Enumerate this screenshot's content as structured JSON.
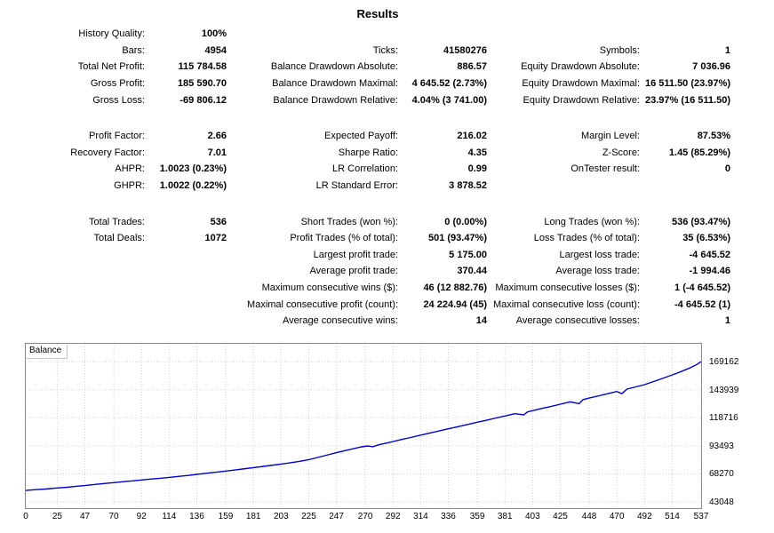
{
  "title": "Results",
  "colors": {
    "line": "#0000c8",
    "grid": "#d2d2d2",
    "plot_border": "#8a8a8a",
    "text": "#000000"
  },
  "stats_rows": [
    {
      "cells": [
        {
          "l": "History Quality:",
          "v": "100%"
        },
        {
          "l": "",
          "v": ""
        },
        {
          "l": "",
          "v": ""
        }
      ]
    },
    {
      "cells": [
        {
          "l": "Bars:",
          "v": "4954"
        },
        {
          "l": "Ticks:",
          "v": "41580276"
        },
        {
          "l": "Symbols:",
          "v": "1"
        }
      ]
    },
    {
      "cells": [
        {
          "l": "Total Net Profit:",
          "v": "115 784.58"
        },
        {
          "l": "Balance Drawdown Absolute:",
          "v": "886.57"
        },
        {
          "l": "Equity Drawdown Absolute:",
          "v": "7 036.96"
        }
      ]
    },
    {
      "cells": [
        {
          "l": "Gross Profit:",
          "v": "185 590.70"
        },
        {
          "l": "Balance Drawdown Maximal:",
          "v": "4 645.52 (2.73%)"
        },
        {
          "l": "Equity Drawdown Maximal:",
          "v": "16 511.50 (23.97%)"
        }
      ]
    },
    {
      "cells": [
        {
          "l": "Gross Loss:",
          "v": "-69 806.12"
        },
        {
          "l": "Balance Drawdown Relative:",
          "v": "4.04% (3 741.00)"
        },
        {
          "l": "Equity Drawdown Relative:",
          "v": "23.97% (16 511.50)"
        }
      ]
    },
    {
      "spacer": true
    },
    {
      "cells": [
        {
          "l": "Profit Factor:",
          "v": "2.66"
        },
        {
          "l": "Expected Payoff:",
          "v": "216.02"
        },
        {
          "l": "Margin Level:",
          "v": "87.53%"
        }
      ]
    },
    {
      "cells": [
        {
          "l": "Recovery Factor:",
          "v": "7.01"
        },
        {
          "l": "Sharpe Ratio:",
          "v": "4.35"
        },
        {
          "l": "Z-Score:",
          "v": "1.45 (85.29%)"
        }
      ]
    },
    {
      "cells": [
        {
          "l": "AHPR:",
          "v": "1.0023 (0.23%)"
        },
        {
          "l": "LR Correlation:",
          "v": "0.99"
        },
        {
          "l": "OnTester result:",
          "v": "0"
        }
      ]
    },
    {
      "cells": [
        {
          "l": "GHPR:",
          "v": "1.0022 (0.22%)"
        },
        {
          "l": "LR Standard Error:",
          "v": "3 878.52"
        },
        {
          "l": "",
          "v": ""
        }
      ]
    },
    {
      "spacer": true
    },
    {
      "cells": [
        {
          "l": "Total Trades:",
          "v": "536"
        },
        {
          "l": "Short Trades (won %):",
          "v": "0 (0.00%)"
        },
        {
          "l": "Long Trades (won %):",
          "v": "536 (93.47%)"
        }
      ]
    },
    {
      "cells": [
        {
          "l": "Total Deals:",
          "v": "1072"
        },
        {
          "l": "Profit Trades (% of total):",
          "v": "501 (93.47%)"
        },
        {
          "l": "Loss Trades (% of total):",
          "v": "35 (6.53%)"
        }
      ]
    },
    {
      "cells": [
        {
          "l": "",
          "v": ""
        },
        {
          "l": "Largest profit trade:",
          "v": "5 175.00"
        },
        {
          "l": "Largest loss trade:",
          "v": "-4 645.52"
        }
      ]
    },
    {
      "cells": [
        {
          "l": "",
          "v": ""
        },
        {
          "l": "Average profit trade:",
          "v": "370.44"
        },
        {
          "l": "Average loss trade:",
          "v": "-1 994.46"
        }
      ]
    },
    {
      "cells": [
        {
          "l": "",
          "v": ""
        },
        {
          "l": "Maximum consecutive wins ($):",
          "v": "46 (12 882.76)"
        },
        {
          "l": "Maximum consecutive losses ($):",
          "v": "1 (-4 645.52)"
        }
      ]
    },
    {
      "cells": [
        {
          "l": "",
          "v": ""
        },
        {
          "l": "Maximal consecutive profit (count):",
          "v": "24 224.94 (45)"
        },
        {
          "l": "Maximal consecutive loss (count):",
          "v": "-4 645.52 (1)"
        }
      ]
    },
    {
      "cells": [
        {
          "l": "",
          "v": ""
        },
        {
          "l": "Average consecutive wins:",
          "v": "14"
        },
        {
          "l": "Average consecutive losses:",
          "v": "1"
        }
      ]
    }
  ],
  "chart_data": {
    "type": "line",
    "title": "Balance",
    "legend_position": "top-left",
    "grid": true,
    "xlim": [
      0,
      537
    ],
    "ylim": [
      37500,
      185200
    ],
    "x_ticks": [
      0,
      25,
      47,
      70,
      92,
      114,
      136,
      159,
      181,
      203,
      225,
      247,
      270,
      292,
      314,
      336,
      359,
      381,
      403,
      425,
      448,
      470,
      492,
      514,
      537
    ],
    "y_ticks": [
      43048,
      68270,
      93493,
      118716,
      143939,
      169162
    ],
    "series": [
      {
        "name": "Balance",
        "color": "#0000c8",
        "x": [
          0,
          8,
          16,
          25,
          33,
          41,
          47,
          56,
          64,
          70,
          78,
          86,
          92,
          100,
          108,
          114,
          122,
          130,
          136,
          144,
          152,
          159,
          167,
          175,
          181,
          189,
          197,
          203,
          211,
          218,
          225,
          232,
          239,
          247,
          254,
          261,
          267,
          272,
          276,
          281,
          288,
          292,
          299,
          306,
          314,
          321,
          328,
          336,
          343,
          351,
          359,
          366,
          374,
          381,
          389,
          396,
          399,
          403,
          411,
          418,
          425,
          433,
          440,
          443,
          448,
          456,
          463,
          470,
          474,
          478,
          485,
          492,
          499,
          506,
          514,
          521,
          528,
          533,
          537
        ],
        "y": [
          53378,
          54100,
          54700,
          55600,
          56300,
          57200,
          57800,
          58900,
          59800,
          60400,
          61300,
          62100,
          62800,
          63700,
          64400,
          65100,
          66100,
          67000,
          67800,
          68900,
          69900,
          70800,
          71900,
          73000,
          73900,
          75000,
          76200,
          77100,
          78400,
          79600,
          81000,
          83000,
          85000,
          87300,
          89200,
          91100,
          92600,
          93400,
          92700,
          94500,
          96300,
          97400,
          99200,
          101000,
          103100,
          104900,
          106700,
          108800,
          110500,
          112600,
          114700,
          116400,
          118500,
          120300,
          122400,
          121300,
          124000,
          125100,
          127200,
          129000,
          130900,
          133000,
          131400,
          135000,
          136400,
          138500,
          140400,
          142300,
          140300,
          144500,
          146500,
          148500,
          151200,
          154000,
          157200,
          160200,
          163500,
          166200,
          169162
        ]
      }
    ]
  }
}
